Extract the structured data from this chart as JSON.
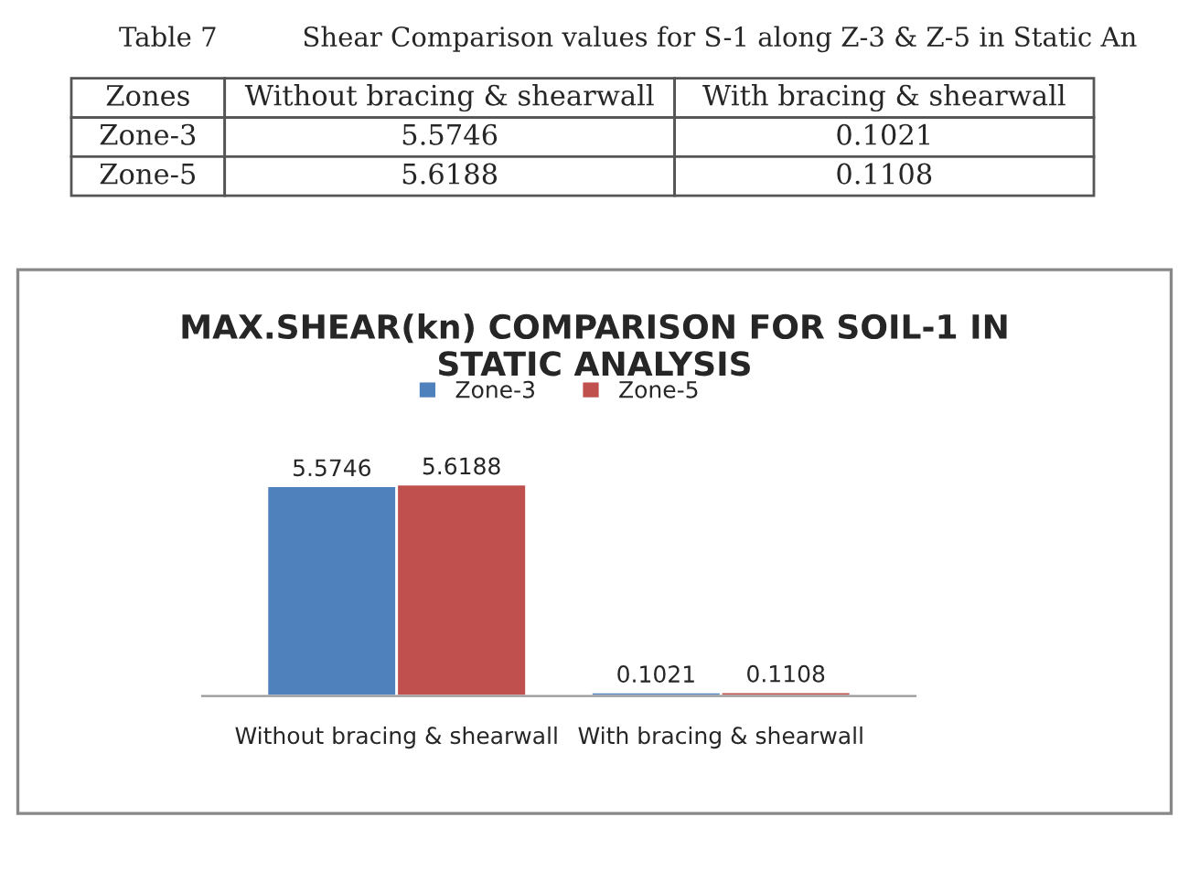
{
  "chart_data": {
    "type": "bar",
    "title": "MAX.SHEAR(kn) COMPARISON FOR SOIL-1 IN\nSTATIC ANALYSIS",
    "categories": [
      "Without bracing & shearwall",
      "With bracing & shearwall"
    ],
    "series": [
      {
        "name": "Zone-3",
        "color": "#4f81bd",
        "values": [
          5.5746,
          0.1021
        ]
      },
      {
        "name": "Zone-5",
        "color": "#c0504d",
        "values": [
          5.6188,
          0.1108
        ]
      }
    ],
    "data_labels": true,
    "legend": "top",
    "grid": false,
    "annotations": [
      "Table 7          Shear Comparison values for S-1 along Z-3 & Z-5 in Static An",
      "Zones",
      "5.5746",
      "0.1021",
      "5.6188",
      "0.1108"
    ]
  }
}
